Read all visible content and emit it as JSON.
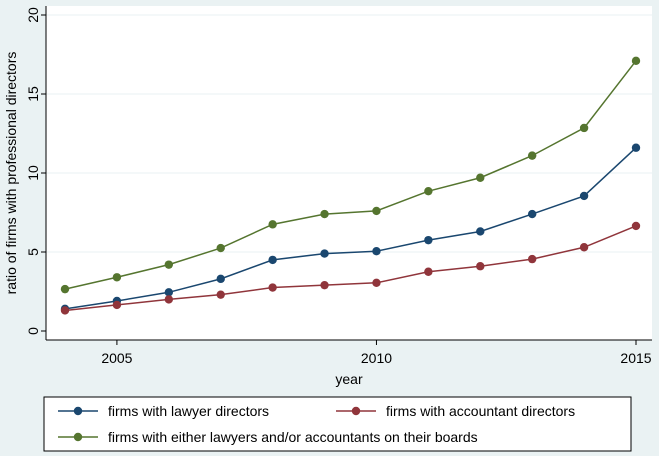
{
  "chart_data": {
    "type": "line",
    "title": "",
    "xlabel": "year",
    "ylabel": "ratio of firms with professional directors",
    "xlim": [
      2004,
      2015
    ],
    "ylim": [
      0,
      20
    ],
    "x_ticks": [
      2005,
      2010,
      2015
    ],
    "y_ticks": [
      0,
      5,
      10,
      15,
      20
    ],
    "grid": true,
    "legend_position": "bottom",
    "x": [
      2004,
      2005,
      2006,
      2007,
      2008,
      2009,
      2010,
      2011,
      2012,
      2013,
      2014,
      2015
    ],
    "series": [
      {
        "name": "firms with lawyer directors",
        "color": "#1a476f",
        "values": [
          1.4,
          1.9,
          2.45,
          3.3,
          4.5,
          4.9,
          5.05,
          5.75,
          6.3,
          7.4,
          8.55,
          11.6
        ]
      },
      {
        "name": "firms with accountant directors",
        "color": "#90353b",
        "values": [
          1.3,
          1.65,
          2.0,
          2.3,
          2.75,
          2.9,
          3.05,
          3.75,
          4.1,
          4.55,
          5.3,
          6.65
        ]
      },
      {
        "name": "firms with either lawyers and/or accountants on their boards",
        "color": "#55752f",
        "values": [
          2.65,
          3.4,
          4.2,
          5.25,
          6.75,
          7.4,
          7.6,
          8.85,
          9.7,
          11.1,
          12.85,
          17.1
        ]
      }
    ]
  }
}
